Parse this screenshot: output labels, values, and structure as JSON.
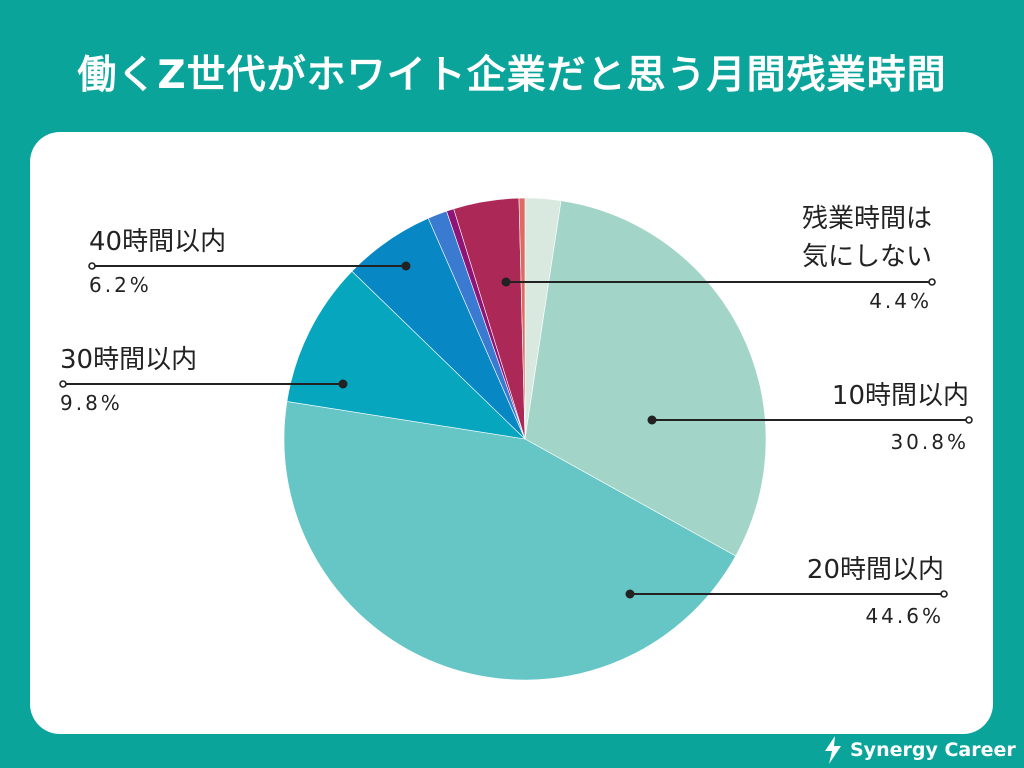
{
  "page": {
    "title": "働くZ世代がホワイト企業だと思う月間残業時間",
    "brand": {
      "name": "Synergy Career",
      "icon": "lightning-leaf-icon",
      "color": "#ffffff"
    },
    "background_color": "#0aa49b"
  },
  "chart_data": {
    "type": "pie",
    "title": "働くZ世代がホワイト企業だと思う月間残業時間",
    "start_angle_deg": 0,
    "direction": "clockwise",
    "legend": "none",
    "slices": [
      {
        "name": "",
        "value": 2.4,
        "color": "#d9e9df",
        "labeled": false
      },
      {
        "name": "10時間以内",
        "value": 30.8,
        "value_label": "30.8%",
        "color": "#a3d4c8",
        "labeled": true
      },
      {
        "name": "20時間以内",
        "value": 44.6,
        "value_label": "44.6%",
        "color": "#66c6c6",
        "labeled": true
      },
      {
        "name": "30時間以内",
        "value": 9.8,
        "value_label": "9.8%",
        "color": "#06a6bf",
        "labeled": true
      },
      {
        "name": "40時間以内",
        "value": 6.2,
        "value_label": "6.2%",
        "color": "#0788c4",
        "labeled": true
      },
      {
        "name": "",
        "value": 1.3,
        "color": "#3a7ad0",
        "labeled": false
      },
      {
        "name": "",
        "value": 0.5,
        "color": "#8e1478",
        "labeled": false
      },
      {
        "name": "残業時間は気にしない",
        "name_lines": [
          "残業時間は",
          "気にしない"
        ],
        "value": 4.4,
        "value_label": "4.4%",
        "color": "#ac2957",
        "labeled": true
      },
      {
        "name": "",
        "value": 0.4,
        "color": "#dd6b63",
        "labeled": false
      }
    ]
  }
}
